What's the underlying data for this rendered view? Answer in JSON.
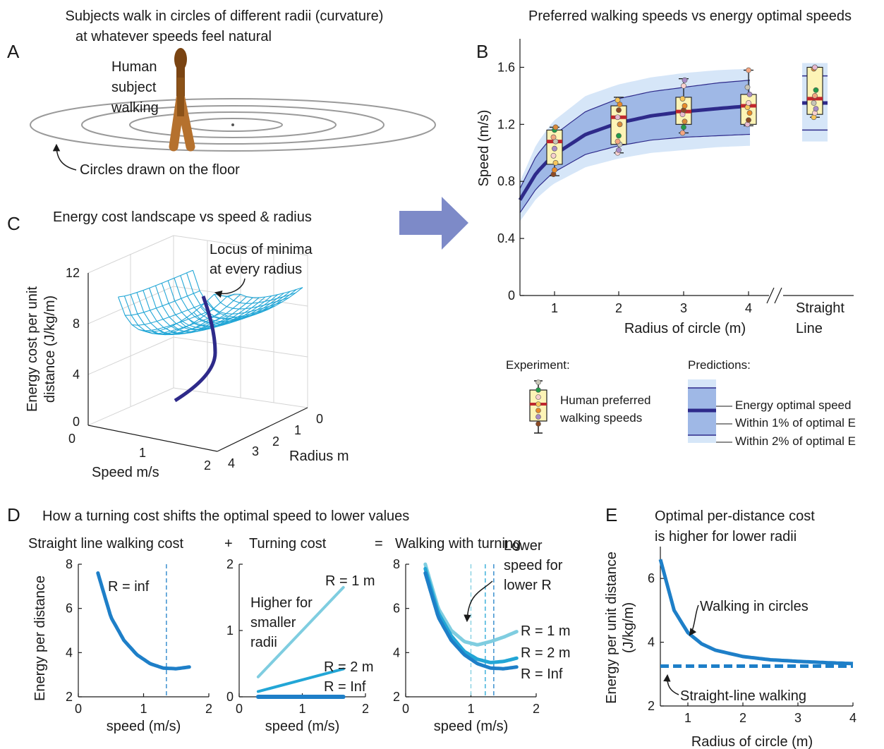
{
  "panel_letters": [
    "A",
    "B",
    "C",
    "D",
    "E"
  ],
  "panelA": {
    "title_line1": "Subjects walk in circles of different radii (curvature)",
    "title_line2": "at whatever speeds feel natural",
    "subject_label": [
      "Human",
      "subject",
      "walking"
    ],
    "circles_label": "Circles drawn on the floor"
  },
  "panelB": {
    "title": "Preferred walking speeds vs energy optimal speeds",
    "legend": {
      "experiment_title": "Experiment:",
      "experiment_label": [
        "Human preferred",
        "walking speeds"
      ],
      "predictions_title": "Predictions:",
      "pred_labels": [
        "Energy optimal speed",
        "Within 1% of optimal E",
        "Within 2% of optimal E"
      ]
    }
  },
  "panelC": {
    "title": "Energy cost landscape vs speed & radius",
    "annotation": [
      "Locus of minima",
      "at every radius"
    ],
    "zlabel": [
      "Energy cost per unit",
      "distance (J/kg/m)"
    ],
    "xlabel": "Speed m/s",
    "ylabel": "Radius m",
    "zticks": [
      "0",
      "4",
      "8",
      "12"
    ],
    "xticks": [
      "0",
      "1",
      "2"
    ],
    "yticks": [
      "0",
      "1",
      "2",
      "3",
      "4"
    ],
    "colors": {
      "mesh": "#22a6d6",
      "locus": "#2e2a8a"
    }
  },
  "panelD": {
    "title": "How a turning cost shifts the optimal speed to lower values",
    "sub1": "Straight line walking cost",
    "op_plus": "+",
    "sub2": "Turning cost",
    "op_eq": "=",
    "sub3": "Walking with turning",
    "ylabel": "Energy per distance",
    "xlabel": "speed (m/s)",
    "left_label": "R = inf",
    "mid_note": [
      "Higher for",
      "smaller",
      "radii"
    ],
    "mid_labels": [
      "R = 1 m",
      "R = 2 m",
      "R = Inf"
    ],
    "right_note": [
      "Lower",
      "speed for",
      "lower R"
    ],
    "right_labels": [
      "R = 1 m",
      "R = 2 m",
      "R = Inf"
    ],
    "yticks_left": [
      "2",
      "4",
      "6",
      "8"
    ],
    "yticks_mid": [
      "0",
      "1",
      "2"
    ],
    "xticks": [
      "0",
      "1",
      "2"
    ]
  },
  "panelE": {
    "title_line1": "Optimal per-distance cost",
    "title_line2": "is higher for lower radii",
    "ylabel_line1": "Energy per unit distance",
    "ylabel_line2": "(J/kg/m)",
    "xlabel": "Radius of circle (m)",
    "label_circles": "Walking in circles",
    "label_straight": "Straight-line walking",
    "yticks": [
      "2",
      "4",
      "6"
    ],
    "xticks": [
      "1",
      "2",
      "3",
      "4"
    ]
  },
  "chart_data": [
    {
      "type": "box",
      "id": "B",
      "title": "Preferred walking speeds vs energy optimal speeds",
      "xlabel": "Radius of circle (m)",
      "ylabel": "Speed (m/s)",
      "ylim": [
        0,
        1.8
      ],
      "yticks": [
        "0",
        "0.4",
        "0.8",
        "1.2",
        "1.6"
      ],
      "categories": [
        "1",
        "2",
        "3",
        "4",
        "Straight Line"
      ],
      "boxes": [
        {
          "x": "1",
          "min": 0.84,
          "q1": 0.92,
          "median": 1.08,
          "q3": 1.16,
          "max": 1.18,
          "points": [
            0.85,
            0.88,
            0.93,
            0.98,
            1.03,
            1.08,
            1.11,
            1.16,
            1.18
          ]
        },
        {
          "x": "2",
          "min": 1.0,
          "q1": 1.06,
          "median": 1.25,
          "q3": 1.33,
          "max": 1.39,
          "points": [
            1.0,
            1.02,
            1.06,
            1.08,
            1.12,
            1.2,
            1.25,
            1.3,
            1.34,
            1.37
          ]
        },
        {
          "x": "3",
          "min": 1.14,
          "q1": 1.2,
          "median": 1.29,
          "q3": 1.39,
          "max": 1.52,
          "points": [
            1.14,
            1.18,
            1.22,
            1.27,
            1.3,
            1.33,
            1.38,
            1.47,
            1.51
          ]
        },
        {
          "x": "4",
          "min": 1.19,
          "q1": 1.2,
          "median": 1.33,
          "q3": 1.41,
          "max": 1.58,
          "points": [
            1.2,
            1.23,
            1.28,
            1.32,
            1.35,
            1.41,
            1.46,
            1.58
          ]
        },
        {
          "x": "Straight Line",
          "min": 1.25,
          "q1": 1.27,
          "median": 1.38,
          "q3": 1.6,
          "max": 1.6,
          "points": [
            1.25,
            1.28,
            1.31,
            1.35,
            1.4,
            1.44,
            1.59,
            1.6
          ]
        }
      ],
      "prediction": {
        "radius": [
          0.5,
          0.75,
          1,
          1.5,
          2,
          2.5,
          3,
          3.5,
          4
        ],
        "optimal": [
          0.67,
          0.86,
          0.98,
          1.13,
          1.21,
          1.26,
          1.29,
          1.31,
          1.33
        ],
        "within1_low": [
          0.58,
          0.75,
          0.86,
          0.99,
          1.05,
          1.09,
          1.11,
          1.12,
          1.13
        ],
        "within1_high": [
          0.75,
          0.98,
          1.12,
          1.29,
          1.38,
          1.43,
          1.46,
          1.49,
          1.51
        ],
        "within2_low": [
          0.52,
          0.68,
          0.78,
          0.9,
          0.96,
          1.0,
          1.02,
          1.04,
          1.05
        ],
        "within2_high": [
          0.8,
          1.06,
          1.22,
          1.4,
          1.48,
          1.53,
          1.56,
          1.58,
          1.59
        ],
        "straight": {
          "optimal": 1.35,
          "within1": [
            1.16,
            1.54
          ],
          "within2": [
            1.08,
            1.63
          ]
        }
      },
      "colors": {
        "optimal": "#2e2a8a",
        "band1": "#9fb8e6",
        "band2": "#d6e6f8",
        "box": "#fdf4b6",
        "median": "#c0272d"
      }
    },
    {
      "type": "line",
      "id": "D-left",
      "xlabel": "speed (m/s)",
      "ylabel": "Energy per distance",
      "xlim": [
        0,
        2
      ],
      "ylim": [
        2,
        8
      ],
      "series": [
        {
          "name": "R = inf",
          "x": [
            0.3,
            0.5,
            0.7,
            0.9,
            1.1,
            1.3,
            1.5,
            1.7
          ],
          "y": [
            7.6,
            5.6,
            4.55,
            3.9,
            3.5,
            3.3,
            3.27,
            3.35
          ]
        }
      ],
      "vline": 1.35
    },
    {
      "type": "line",
      "id": "D-middle",
      "xlabel": "speed (m/s)",
      "xlim": [
        0,
        2
      ],
      "ylim": [
        0,
        2
      ],
      "series": [
        {
          "name": "R = 1 m",
          "x": [
            0.3,
            1.65
          ],
          "y": [
            0.3,
            1.65
          ]
        },
        {
          "name": "R = 2 m",
          "x": [
            0.3,
            1.65
          ],
          "y": [
            0.08,
            0.42
          ]
        },
        {
          "name": "R = Inf",
          "x": [
            0.3,
            1.65
          ],
          "y": [
            0,
            0
          ]
        }
      ]
    },
    {
      "type": "line",
      "id": "D-right",
      "xlabel": "speed (m/s)",
      "xlim": [
        0,
        2
      ],
      "ylim": [
        2,
        8
      ],
      "series": [
        {
          "name": "R = 1 m",
          "x": [
            0.3,
            0.5,
            0.7,
            0.9,
            1.1,
            1.3,
            1.5,
            1.7
          ],
          "y": [
            8.0,
            6.0,
            5.0,
            4.5,
            4.35,
            4.5,
            4.7,
            4.95
          ]
        },
        {
          "name": "R = 2 m",
          "x": [
            0.3,
            0.5,
            0.7,
            0.9,
            1.1,
            1.3,
            1.5,
            1.7
          ],
          "y": [
            7.8,
            5.8,
            4.75,
            4.05,
            3.7,
            3.55,
            3.6,
            3.75
          ]
        },
        {
          "name": "R = Inf",
          "x": [
            0.3,
            0.5,
            0.7,
            0.9,
            1.1,
            1.3,
            1.5,
            1.7
          ],
          "y": [
            7.6,
            5.6,
            4.55,
            3.9,
            3.5,
            3.3,
            3.27,
            3.35
          ]
        }
      ],
      "vlines": [
        1.0,
        1.22,
        1.35
      ]
    },
    {
      "type": "line",
      "id": "E",
      "xlabel": "Radius of circle (m)",
      "ylabel": "Energy per unit distance (J/kg/m)",
      "xlim": [
        0.5,
        4
      ],
      "ylim": [
        2,
        7
      ],
      "series": [
        {
          "name": "Walking in circles",
          "x": [
            0.5,
            0.75,
            1,
            1.25,
            1.5,
            2,
            2.5,
            3,
            3.5,
            4
          ],
          "y": [
            6.6,
            5.0,
            4.3,
            3.95,
            3.75,
            3.55,
            3.45,
            3.4,
            3.36,
            3.33
          ]
        },
        {
          "name": "Straight-line walking",
          "x": [
            0.5,
            4
          ],
          "y": [
            3.25,
            3.25
          ]
        }
      ]
    }
  ]
}
